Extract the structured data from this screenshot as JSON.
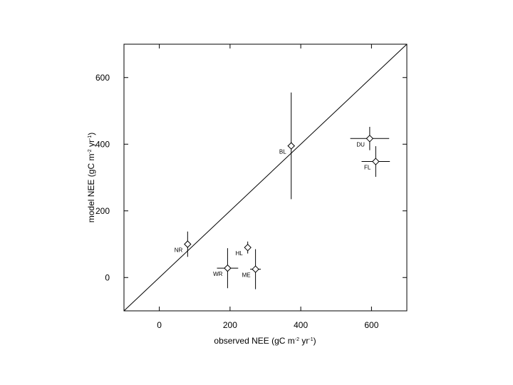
{
  "chart_data": {
    "type": "scatter",
    "title": "",
    "xlabel": "observed NEE (gC m",
    "xlabel_sup": "-2",
    "xlabel_mid": " yr",
    "xlabel_sup2": "-1",
    "xlabel_end": ")",
    "ylabel": "model NEE (gC m",
    "ylabel_sup": "-2",
    "ylabel_mid": " yr",
    "ylabel_sup2": "-1",
    "ylabel_end": ")",
    "xlim": [
      -100,
      700
    ],
    "ylim": [
      -100,
      700
    ],
    "xticks": [
      0,
      200,
      400,
      600
    ],
    "yticks": [
      0,
      200,
      400,
      600
    ],
    "xtick_labels": [
      "0",
      "200",
      "400",
      "600"
    ],
    "ytick_labels": [
      "0",
      "200",
      "400",
      "600"
    ],
    "reference_line": "1:1",
    "grid": false,
    "marker": "diamond",
    "points": [
      {
        "label": "NR",
        "x": 80,
        "y": 100,
        "xerr": 8,
        "yerr": 38
      },
      {
        "label": "WR",
        "x": 193,
        "y": 28,
        "xerr": 30,
        "yerr": 60
      },
      {
        "label": "HL",
        "x": 250,
        "y": 90,
        "xerr": 8,
        "yerr": 18
      },
      {
        "label": "ME",
        "x": 272,
        "y": 25,
        "xerr": 15,
        "yerr": 60
      },
      {
        "label": "BL",
        "x": 373,
        "y": 395,
        "xerr": 10,
        "yerr": 160
      },
      {
        "label": "DU",
        "x": 595,
        "y": 417,
        "xerr": 55,
        "yerr": 35
      },
      {
        "label": "FL",
        "x": 612,
        "y": 348,
        "xerr": 40,
        "yerr": 46
      }
    ]
  }
}
